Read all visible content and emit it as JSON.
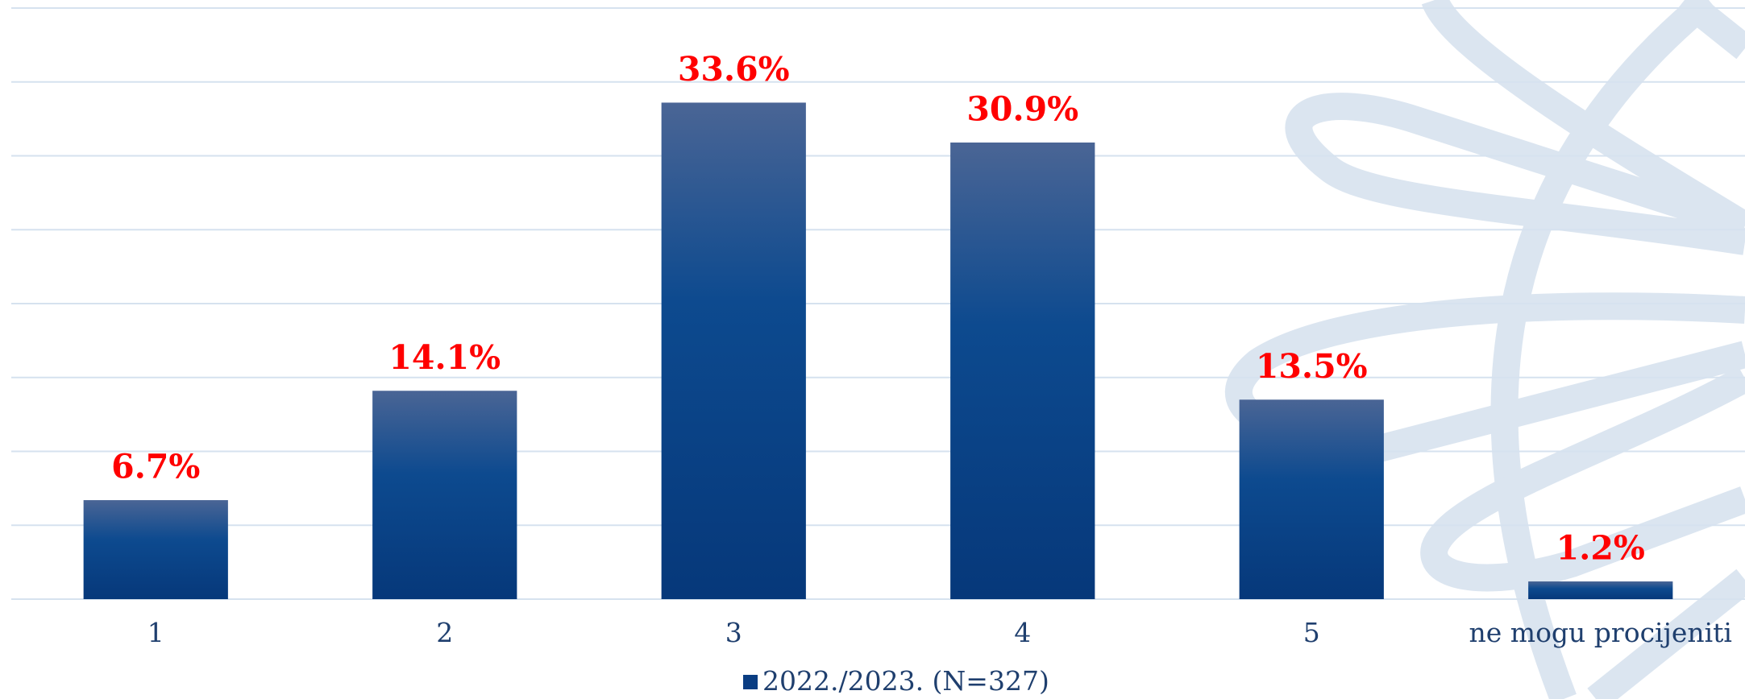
{
  "chart_data": {
    "type": "bar",
    "categories": [
      "1",
      "2",
      "3",
      "4",
      "5",
      "ne mogu procijeniti"
    ],
    "series": [
      {
        "name": "2022./2023. (N=327)",
        "color": "#0a3d82",
        "values": [
          6.7,
          14.1,
          33.6,
          30.9,
          13.5,
          1.2
        ],
        "value_labels": [
          "6.7%",
          "14.1%",
          "33.6%",
          "30.9%",
          "13.5%",
          "1.2%"
        ],
        "label_color": "#ff0000"
      }
    ],
    "ylim": [
      0,
      40
    ],
    "yticks": [
      0,
      5,
      10,
      15,
      20,
      25,
      30,
      35,
      40
    ],
    "grid": true,
    "legend": "bottom"
  }
}
